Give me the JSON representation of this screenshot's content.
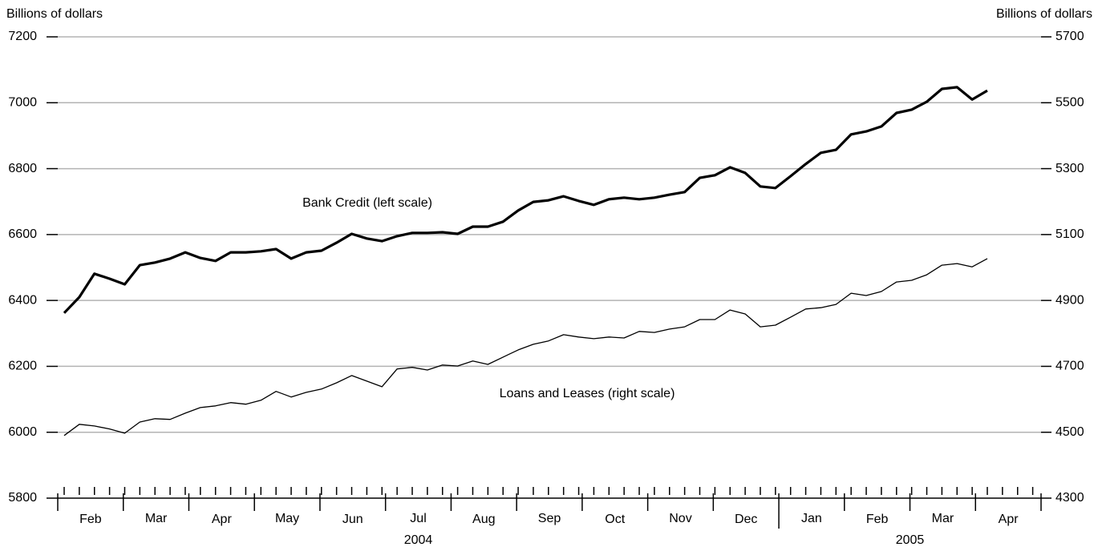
{
  "chart_data": {
    "type": "line",
    "y_axis_label": "Billions of dollars",
    "y2_axis_label": "Billions of dollars",
    "ylim": [
      5800,
      7200
    ],
    "yticks": [
      5800,
      6000,
      6200,
      6400,
      6600,
      6800,
      7000,
      7200
    ],
    "y2lim": [
      4300,
      5700
    ],
    "y2ticks": [
      4300,
      4500,
      4700,
      4900,
      5100,
      5300,
      5500,
      5700
    ],
    "grid": true,
    "x_axis": {
      "years": [
        {
          "label": "2004",
          "months": [
            "Feb",
            "Mar",
            "Apr",
            "May",
            "Jun",
            "Jul",
            "Aug",
            "Sep",
            "Oct",
            "Nov",
            "Dec"
          ]
        },
        {
          "label": "2005",
          "months": [
            "Jan",
            "Feb",
            "Mar",
            "Apr"
          ]
        }
      ]
    },
    "series": [
      {
        "name": "Bank Credit (left scale)",
        "color": "#000000",
        "axis": "y",
        "values": [
          6362,
          6410,
          6481,
          6466,
          6449,
          6507,
          6515,
          6527,
          6546,
          6529,
          6520,
          6546,
          6546,
          6549,
          6556,
          6527,
          6546,
          6551,
          6575,
          6602,
          6588,
          6580,
          6595,
          6605,
          6605,
          6607,
          6602,
          6624,
          6624,
          6639,
          6673,
          6699,
          6704,
          6716,
          6702,
          6690,
          6707,
          6712,
          6707,
          6712,
          6721,
          6729,
          6772,
          6780,
          6804,
          6787,
          6746,
          6741,
          6777,
          6814,
          6848,
          6857,
          6904,
          6913,
          6928,
          6969,
          6979,
          7003,
          7042,
          7047,
          7010,
          7037
        ]
      },
      {
        "name": "Loans and Leases (right scale)",
        "color": "#000000",
        "axis": "y2",
        "values": [
          4490,
          4524,
          4519,
          4510,
          4497,
          4531,
          4541,
          4539,
          4558,
          4575,
          4580,
          4590,
          4585,
          4597,
          4624,
          4607,
          4621,
          4631,
          4650,
          4672,
          4655,
          4638,
          4692,
          4697,
          4689,
          4704,
          4701,
          4716,
          4706,
          4728,
          4750,
          4767,
          4777,
          4796,
          4789,
          4784,
          4789,
          4786,
          4806,
          4803,
          4813,
          4820,
          4842,
          4842,
          4871,
          4859,
          4820,
          4825,
          4849,
          4874,
          4878,
          4888,
          4922,
          4915,
          4927,
          4956,
          4961,
          4978,
          5007,
          5012,
          5002,
          5027
        ]
      }
    ]
  }
}
